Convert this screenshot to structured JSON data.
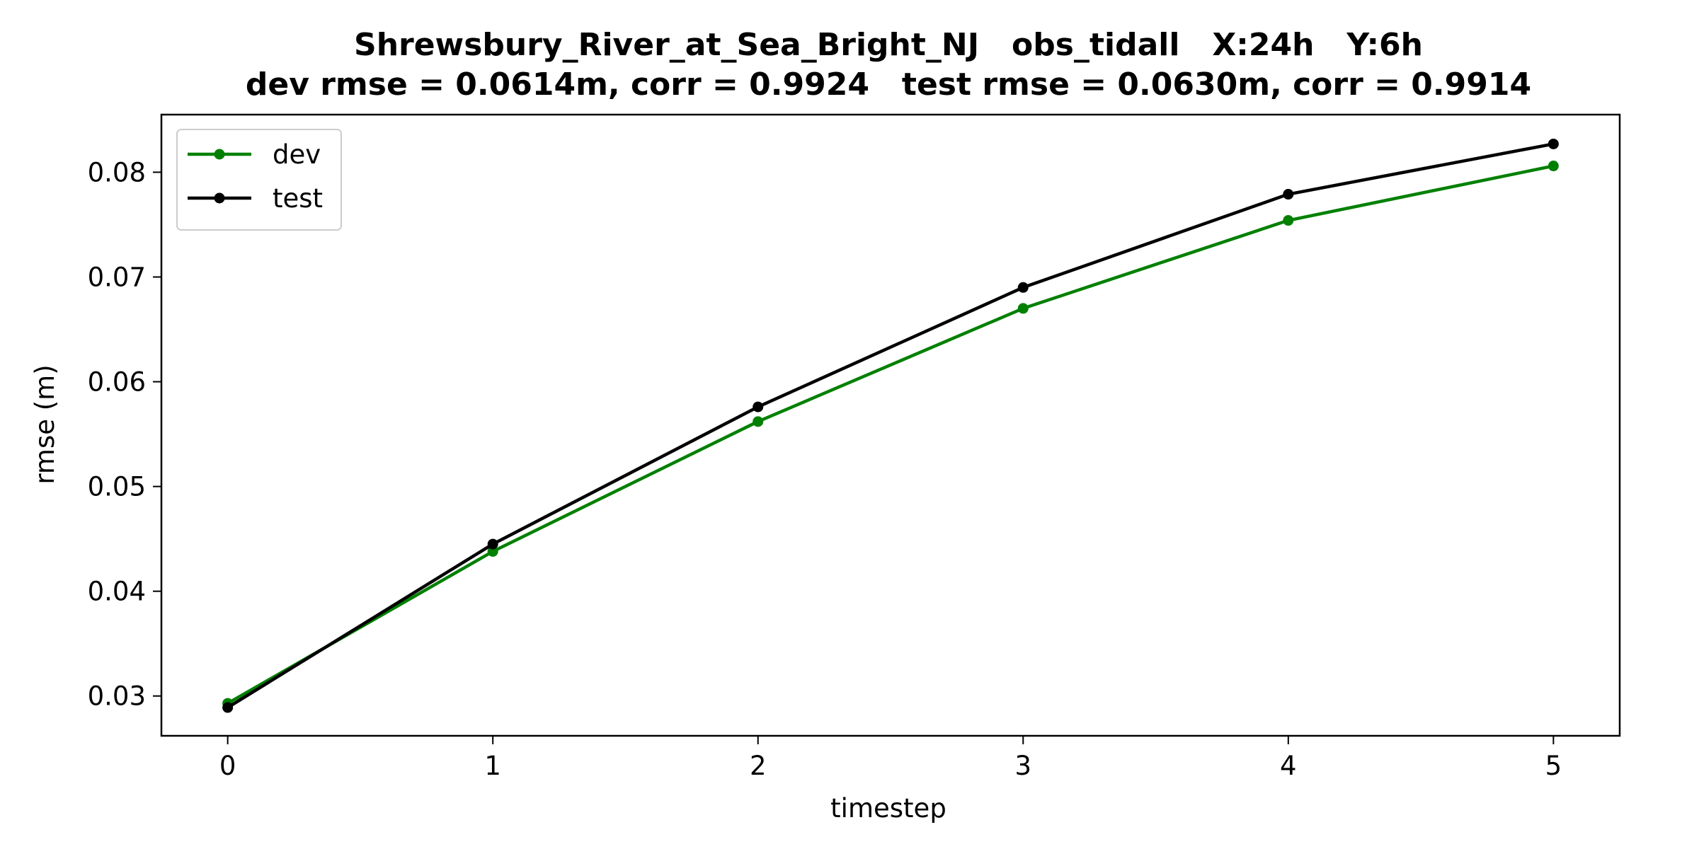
{
  "chart_data": {
    "type": "line",
    "title": "Shrewsbury_River_at_Sea_Bright_NJ   obs_tidall   X:24h   Y:6h",
    "subtitle": "dev rmse = 0.0614m, corr = 0.9924   test rmse = 0.0630m, corr = 0.9914",
    "xlabel": "timestep",
    "ylabel": "rmse (m)",
    "x": [
      0,
      1,
      2,
      3,
      4,
      5
    ],
    "xlim": [
      -0.25,
      5.25
    ],
    "ylim": [
      0.0262,
      0.0855
    ],
    "x_ticks": [
      0,
      1,
      2,
      3,
      4,
      5
    ],
    "x_tick_labels": [
      "0",
      "1",
      "2",
      "3",
      "4",
      "5"
    ],
    "y_ticks": [
      0.03,
      0.04,
      0.05,
      0.06,
      0.07,
      0.08
    ],
    "y_tick_labels": [
      "0.03",
      "0.04",
      "0.05",
      "0.06",
      "0.07",
      "0.08"
    ],
    "grid": false,
    "legend_position": "top-left",
    "series": [
      {
        "name": "dev",
        "color": "#008000",
        "values": [
          0.0293,
          0.0438,
          0.0562,
          0.067,
          0.0754,
          0.0806
        ]
      },
      {
        "name": "test",
        "color": "#000000",
        "values": [
          0.0289,
          0.0445,
          0.0576,
          0.069,
          0.0779,
          0.0827
        ]
      }
    ]
  }
}
